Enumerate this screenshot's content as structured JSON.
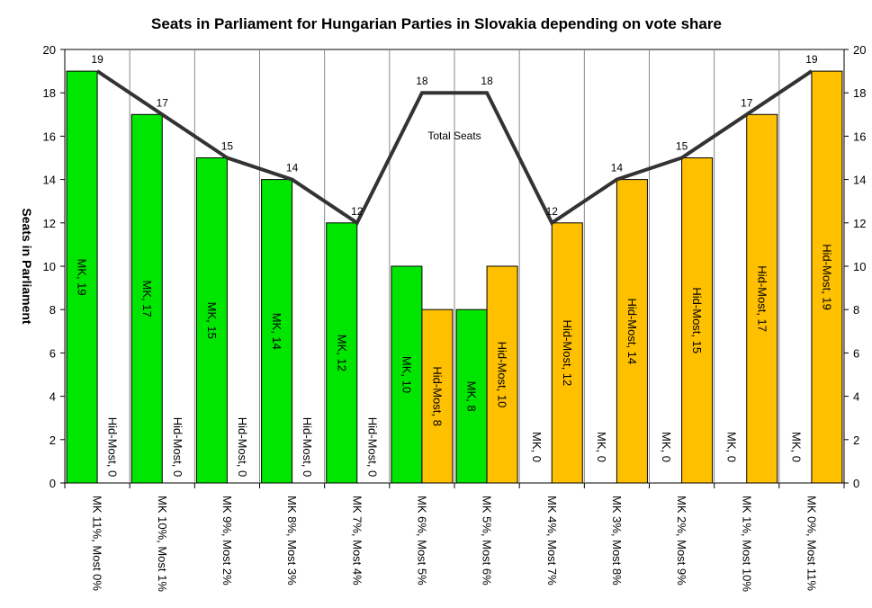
{
  "chart_data": {
    "type": "bar",
    "title": "Seats in Parliament for Hungarian Parties in Slovakia depending on vote share",
    "ylabel": "Seats in  Parliament",
    "ylim": [
      0,
      20
    ],
    "y_ticks": [
      0,
      2,
      4,
      6,
      8,
      10,
      12,
      14,
      16,
      18,
      20
    ],
    "secondary_y_axis": true,
    "grid": "vertical category separators",
    "categories": [
      "MK 11%, Most 0%",
      "MK 10%, Most 1%",
      "MK 9%, Most 2%",
      "MK 8%, Most 3%",
      "MK 7%, Most 4%",
      "MK 6%, Most 5%",
      "MK 5%, Most 6%",
      "MK 4%, Most 7%",
      "MK 3%, Most 8%",
      "MK 2%, Most 9%",
      "MK 1%, Most 10%",
      "MK 0%, Most 11%"
    ],
    "series": [
      {
        "name": "MK",
        "type": "bar",
        "color": "#00e600",
        "values": [
          19,
          17,
          15,
          14,
          12,
          10,
          8,
          0,
          0,
          0,
          0,
          0
        ],
        "labels": [
          "MK, 19",
          "MK, 17",
          "MK, 15",
          "MK, 14",
          "MK, 12",
          "MK, 10",
          "MK, 8",
          "MK, 0",
          "MK, 0",
          "MK, 0",
          "MK, 0",
          "MK, 0"
        ]
      },
      {
        "name": "Hid-Most",
        "type": "bar",
        "color": "#ffc000",
        "values": [
          0,
          0,
          0,
          0,
          0,
          8,
          10,
          12,
          14,
          15,
          17,
          19
        ],
        "labels": [
          "Hid-Most, 0",
          "Hid-Most, 0",
          "Hid-Most, 0",
          "Hid-Most, 0",
          "Hid-Most, 0",
          "Hid-Most, 8",
          "Hid-Most, 10",
          "Hid-Most, 12",
          "Hid-Most, 14",
          "Hid-Most, 15",
          "Hid-Most, 17",
          "Hid-Most, 19"
        ]
      },
      {
        "name": "Total Seats",
        "type": "line",
        "color": "#333333",
        "values": [
          19,
          17,
          15,
          14,
          12,
          18,
          18,
          12,
          14,
          15,
          17,
          19
        ],
        "label_index": 5
      }
    ]
  }
}
